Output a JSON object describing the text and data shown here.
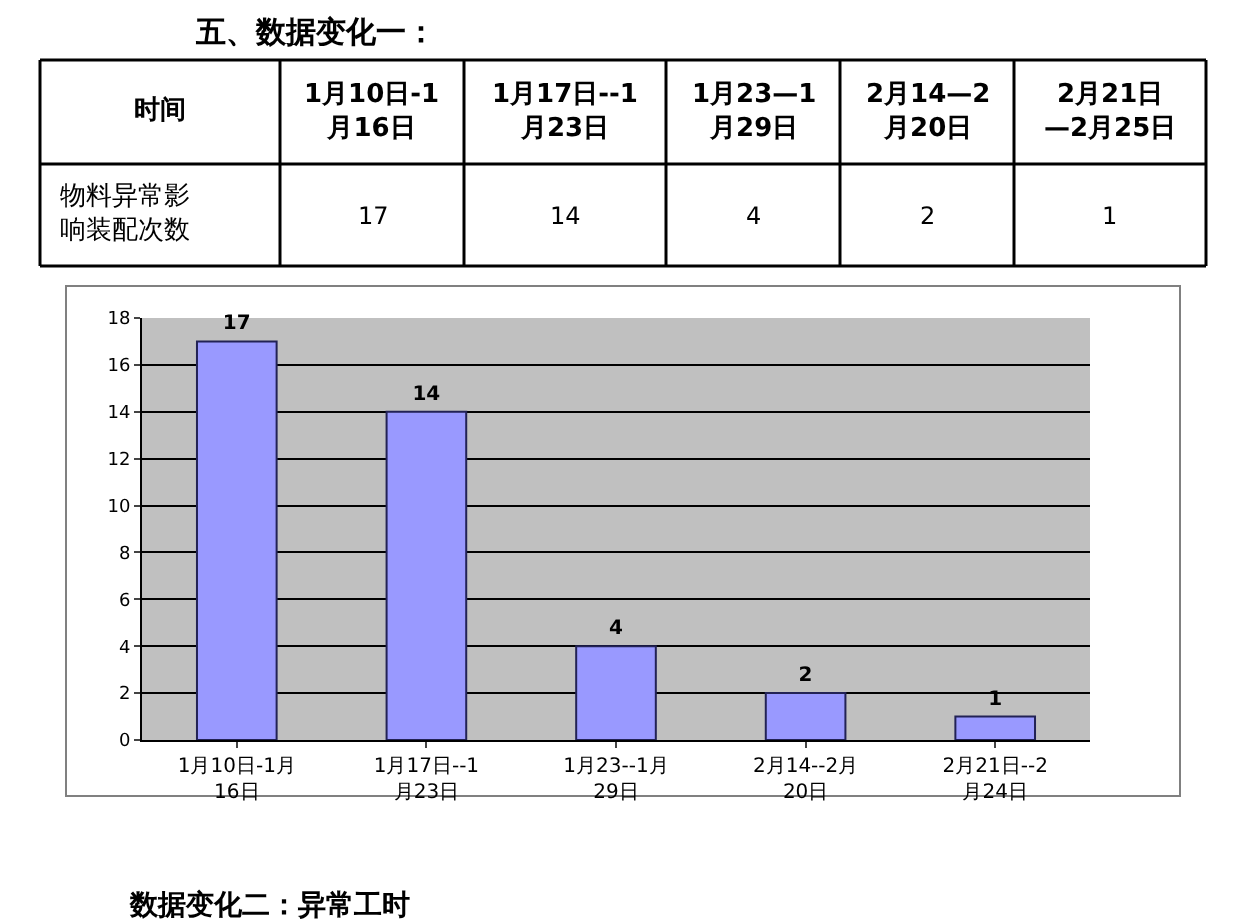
{
  "chart_data": {
    "type": "bar",
    "title": "五、数据变化一：",
    "categories": [
      "1月10日-1月\n16日",
      "1月17日--1\n月23日",
      "1月23--1月\n29日",
      "2月14--2月\n20日",
      "2月21日--2\n月24日"
    ],
    "values": [
      17,
      14,
      4,
      2,
      1
    ],
    "color": "#9999ff",
    "ylim": [
      0,
      18
    ],
    "yticks": [
      0,
      2,
      4,
      6,
      8,
      10,
      12,
      14,
      16,
      18
    ],
    "grid": "y",
    "data_labels": true,
    "annotations": [
      "时间",
      "1月10日-1\n月16日",
      "1月17日--1\n月23日",
      "1月23—1\n月29日",
      "2月14—2\n月20日",
      "2月21日\n—2月25日",
      "物料异常影响装配次数",
      "17",
      "14",
      "4",
      "2",
      "1",
      "数据变化二：异常工时"
    ]
  }
}
